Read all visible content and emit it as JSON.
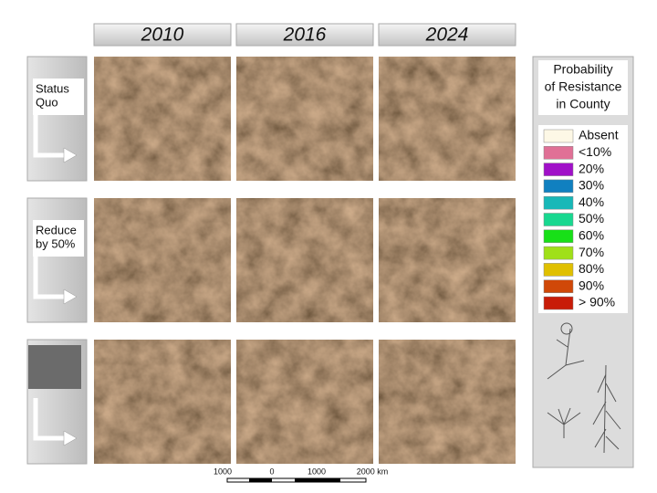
{
  "columns": [
    "2010",
    "2016",
    "2024"
  ],
  "row_labels": [
    [
      "Status",
      "Quo"
    ],
    [
      "Reduce",
      "by 50%"
    ]
  ],
  "legend": {
    "title": [
      "Probability",
      "of Resistance",
      "in County"
    ],
    "entries": [
      {
        "label": "Absent",
        "color": "#fdf8e6"
      },
      {
        "label": "<10%",
        "color": "#e07096"
      },
      {
        "label": "20%",
        "color": "#a010c8"
      },
      {
        "label": "30%",
        "color": "#1080c0"
      },
      {
        "label": "40%",
        "color": "#18b8b8"
      },
      {
        "label": "50%",
        "color": "#18d890"
      },
      {
        "label": "60%",
        "color": "#18e018"
      },
      {
        "label": "70%",
        "color": "#a0e018"
      },
      {
        "label": "80%",
        "color": "#e0c000"
      },
      {
        "label": "90%",
        "color": "#d04808"
      },
      {
        "label": "> 90%",
        "color": "#c81c08"
      }
    ]
  },
  "scale_bar": [
    "1000",
    "0",
    "1000",
    "2000 km"
  ]
}
